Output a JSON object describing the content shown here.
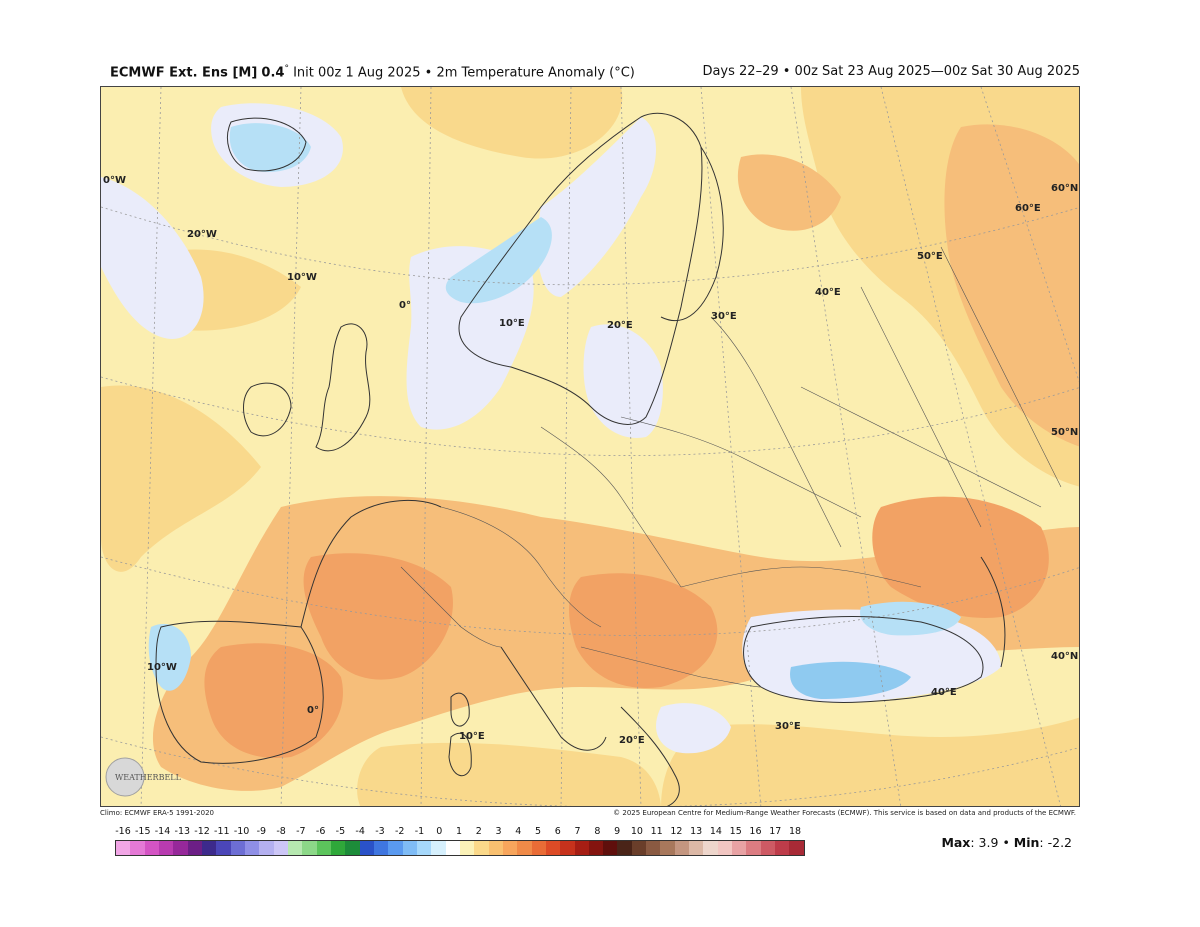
{
  "header": {
    "model": "ECMWF Ext. Ens [M]",
    "resolution": "0.4",
    "degree_sign": "°",
    "init": "Init 00z 1 Aug 2025",
    "bullet": "•",
    "variable": "2m Temperature Anomaly (°C)",
    "valid": "Days 22–29 • 00z Sat 23 Aug 2025—00z Sat 30 Aug 2025"
  },
  "map": {
    "graticule_labels": [
      "0°W",
      "20°W",
      "10°W",
      "0°",
      "10°E",
      "20°E",
      "30°E",
      "40°E",
      "50°E",
      "60°E",
      "60°N",
      "50°N",
      "40°N",
      "10°W",
      "0°",
      "10°E",
      "20°E",
      "30°E",
      "40°E"
    ],
    "logo_text": "WEATHERBELL"
  },
  "credits": {
    "climo": "Climo: ECMWF ERA-5 1991-2020",
    "copyright": "© 2025 European Centre for Medium-Range Weather Forecasts (ECMWF). This service is based on data and products of the ECMWF."
  },
  "colorbar": {
    "ticks": [
      "-16",
      "-15",
      "-14",
      "-13",
      "-12",
      "-11",
      "-10",
      "-9",
      "-8",
      "-7",
      "-6",
      "-5",
      "-4",
      "-3",
      "-2",
      "-1",
      "0",
      "1",
      "2",
      "3",
      "4",
      "5",
      "6",
      "7",
      "8",
      "9",
      "10",
      "11",
      "12",
      "13",
      "14",
      "15",
      "16",
      "17",
      "18"
    ],
    "colors": [
      "#f2a6e6",
      "#e579d6",
      "#d454c4",
      "#b83bb0",
      "#96289a",
      "#6c1f86",
      "#3d2a8c",
      "#4b46b8",
      "#6d6ed4",
      "#8f8fe6",
      "#b4b0f0",
      "#ccc6f6",
      "#b6e8b0",
      "#8cd888",
      "#5cc45c",
      "#2fa83a",
      "#1d8c3a",
      "#2a52c8",
      "#3f76e0",
      "#5a9af0",
      "#7fbcf6",
      "#a6d8fb",
      "#d6f0fd",
      "#ffffff",
      "#fbf2b8",
      "#fbd98a",
      "#f9c070",
      "#f7a55c",
      "#f08a48",
      "#e96c36",
      "#dd4b26",
      "#c7321c",
      "#a61e14",
      "#84140f",
      "#5f0f0c",
      "#4a2418",
      "#6a3e2a",
      "#8a5a42",
      "#a8785c",
      "#c49680",
      "#dcb8a6",
      "#eed6cc",
      "#f2c6c2",
      "#e8a2a4",
      "#dc7c82",
      "#ce5a64",
      "#be3c4a",
      "#a82a36"
    ]
  },
  "stats": {
    "max_label": "Max",
    "max_value": ": 3.9",
    "bullet": "•",
    "min_label": "Min",
    "min_value": ": -2.2"
  },
  "palette": {
    "background": "#fbeeb0",
    "warm1": "#f9d98c",
    "warm2": "#f6be7a",
    "warm3": "#f2a264",
    "cool_neutral": "#eaecfa",
    "cool_blue": "#b6e0f6",
    "cool_blue2": "#8fcaf0"
  }
}
